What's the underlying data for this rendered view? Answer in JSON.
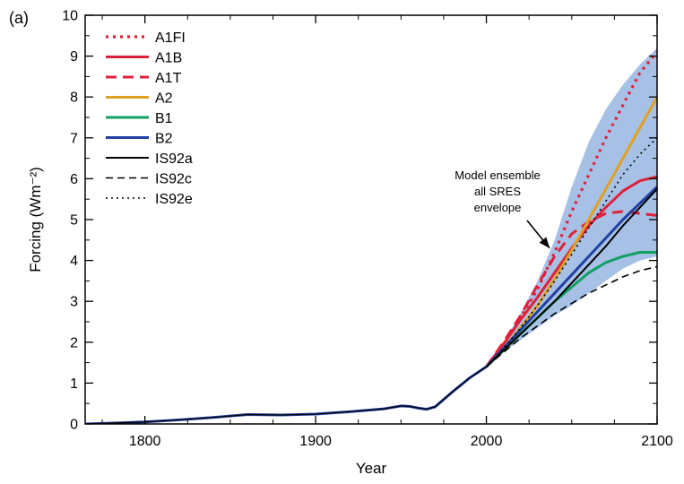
{
  "chart_data": {
    "type": "line",
    "panel_label": "(a)",
    "title": "",
    "xlabel": "Year",
    "ylabel": "Forcing (Wm⁻²)",
    "xlim": [
      1765,
      2100
    ],
    "ylim": [
      0,
      10
    ],
    "x_ticks": [
      1800,
      1900,
      2000,
      2100
    ],
    "y_ticks": [
      0,
      1,
      2,
      3,
      4,
      5,
      6,
      7,
      8,
      9,
      10
    ],
    "grid": false,
    "legend_position": "top-left",
    "envelope": {
      "color": "#a7c1e6",
      "x": [
        2000,
        2010,
        2020,
        2030,
        2040,
        2050,
        2060,
        2070,
        2080,
        2090,
        2100
      ],
      "upper": [
        1.4,
        2.0,
        2.7,
        3.5,
        4.5,
        5.8,
        6.9,
        7.7,
        8.3,
        8.8,
        9.2
      ],
      "lower": [
        1.4,
        1.75,
        2.05,
        2.35,
        2.65,
        2.9,
        3.2,
        3.5,
        3.8,
        4.0,
        4.1
      ]
    },
    "annotation": {
      "lines": [
        "Model ensemble",
        "all SRES",
        "envelope"
      ],
      "arrow_to": [
        2037,
        4.3
      ]
    },
    "historical": {
      "x": [
        1765,
        1780,
        1800,
        1820,
        1840,
        1860,
        1880,
        1900,
        1920,
        1940,
        1950,
        1955,
        1960,
        1965,
        1970,
        1980,
        1990,
        2000
      ],
      "y": [
        0.0,
        0.02,
        0.05,
        0.1,
        0.16,
        0.23,
        0.22,
        0.24,
        0.3,
        0.37,
        0.44,
        0.43,
        0.39,
        0.36,
        0.42,
        0.78,
        1.12,
        1.4
      ]
    },
    "series": [
      {
        "name": "A1FI",
        "color": "#e0203a",
        "style": "dotted",
        "width": 3.2,
        "x": [
          2000,
          2010,
          2020,
          2030,
          2040,
          2050,
          2060,
          2070,
          2080,
          2090,
          2100
        ],
        "y": [
          1.4,
          1.95,
          2.6,
          3.3,
          4.2,
          5.2,
          6.1,
          7.0,
          7.8,
          8.6,
          9.1
        ]
      },
      {
        "name": "A1B",
        "color": "#e0203a",
        "style": "solid",
        "width": 3,
        "x": [
          2000,
          2010,
          2020,
          2030,
          2040,
          2050,
          2060,
          2070,
          2080,
          2090,
          2100
        ],
        "y": [
          1.4,
          1.95,
          2.55,
          3.1,
          3.7,
          4.3,
          4.85,
          5.3,
          5.7,
          5.95,
          6.05
        ]
      },
      {
        "name": "A1T",
        "color": "#e0203a",
        "style": "dashed",
        "width": 3,
        "x": [
          2000,
          2010,
          2020,
          2030,
          2040,
          2050,
          2060,
          2070,
          2080,
          2090,
          2100
        ],
        "y": [
          1.4,
          2.0,
          2.65,
          3.4,
          4.1,
          4.65,
          4.95,
          5.15,
          5.2,
          5.15,
          5.1
        ]
      },
      {
        "name": "A2",
        "color": "#e0a020",
        "style": "solid",
        "width": 3,
        "x": [
          2000,
          2010,
          2020,
          2030,
          2040,
          2050,
          2060,
          2070,
          2080,
          2090,
          2100
        ],
        "y": [
          1.4,
          1.85,
          2.35,
          2.9,
          3.55,
          4.25,
          5.0,
          5.75,
          6.5,
          7.25,
          8.0
        ]
      },
      {
        "name": "B1",
        "color": "#10a060",
        "style": "solid",
        "width": 3,
        "x": [
          2000,
          2010,
          2020,
          2030,
          2040,
          2050,
          2060,
          2070,
          2080,
          2090,
          2100
        ],
        "y": [
          1.4,
          1.8,
          2.2,
          2.6,
          3.0,
          3.35,
          3.7,
          3.95,
          4.1,
          4.2,
          4.2
        ]
      },
      {
        "name": "B2",
        "color": "#2040a0",
        "style": "solid",
        "width": 3,
        "x": [
          2000,
          2010,
          2020,
          2030,
          2040,
          2050,
          2060,
          2070,
          2080,
          2090,
          2100
        ],
        "y": [
          1.4,
          1.85,
          2.3,
          2.75,
          3.2,
          3.65,
          4.1,
          4.55,
          5.0,
          5.4,
          5.8
        ]
      },
      {
        "name": "IS92a",
        "color": "#000000",
        "style": "solid",
        "width": 2,
        "x": [
          2000,
          2010,
          2020,
          2030,
          2040,
          2050,
          2060,
          2070,
          2080,
          2090,
          2100
        ],
        "y": [
          1.4,
          1.8,
          2.2,
          2.6,
          3.0,
          3.45,
          3.9,
          4.35,
          4.85,
          5.3,
          5.75
        ]
      },
      {
        "name": "IS92c",
        "color": "#000000",
        "style": "dashed",
        "width": 1.6,
        "x": [
          2000,
          2010,
          2020,
          2030,
          2040,
          2050,
          2060,
          2070,
          2080,
          2090,
          2100
        ],
        "y": [
          1.4,
          1.75,
          2.1,
          2.4,
          2.7,
          2.95,
          3.2,
          3.4,
          3.6,
          3.75,
          3.85
        ]
      },
      {
        "name": "IS92e",
        "color": "#000000",
        "style": "dotted",
        "width": 1.6,
        "x": [
          2000,
          2010,
          2020,
          2030,
          2040,
          2050,
          2060,
          2070,
          2080,
          2090,
          2100
        ],
        "y": [
          1.4,
          1.85,
          2.35,
          2.9,
          3.5,
          4.15,
          4.8,
          5.45,
          6.1,
          6.6,
          7.0
        ]
      }
    ]
  }
}
